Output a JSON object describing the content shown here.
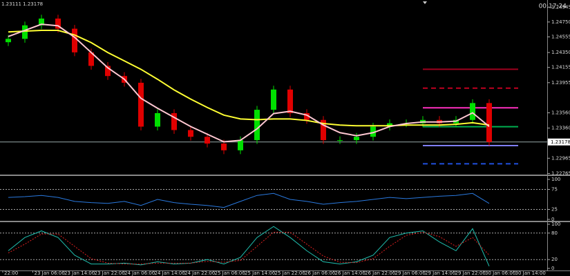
{
  "chart_data": [
    {
      "type": "candlestick",
      "info": "1.23111 1.23178",
      "clock": "00:17:24",
      "open": [
        1.24485,
        1.24529,
        1.24706,
        1.24795,
        1.24662,
        1.24352,
        1.24175,
        1.24042,
        1.23954,
        1.23379,
        1.23556,
        1.23334,
        1.23246,
        1.23157,
        1.23069,
        1.23202,
        1.236,
        1.23865,
        1.23556,
        1.23467,
        1.23202,
        1.23202,
        1.23246,
        1.23379,
        1.23423,
        1.23423,
        1.23467,
        1.23423,
        1.23467,
        1.23688
      ],
      "high": [
        1.24579,
        1.24756,
        1.24845,
        1.24845,
        1.24712,
        1.24402,
        1.24225,
        1.24092,
        1.24004,
        1.23606,
        1.23606,
        1.23384,
        1.23296,
        1.23207,
        1.23252,
        1.2365,
        1.23915,
        1.23915,
        1.23606,
        1.23517,
        1.23252,
        1.23296,
        1.23429,
        1.23473,
        1.23473,
        1.23517,
        1.23517,
        1.23517,
        1.23738,
        1.23738
      ],
      "low": [
        1.24435,
        1.24479,
        1.24656,
        1.24612,
        1.24302,
        1.24125,
        1.23992,
        1.23904,
        1.23329,
        1.23329,
        1.23284,
        1.23196,
        1.23107,
        1.23019,
        1.23019,
        1.23152,
        1.2355,
        1.23506,
        1.23417,
        1.23152,
        1.23152,
        1.23152,
        1.23196,
        1.23329,
        1.23373,
        1.23373,
        1.23373,
        1.23373,
        1.23417,
        1.23128
      ],
      "close": [
        1.24529,
        1.24706,
        1.24795,
        1.24662,
        1.24352,
        1.24175,
        1.24042,
        1.23954,
        1.23379,
        1.23556,
        1.23334,
        1.23246,
        1.23157,
        1.23069,
        1.23202,
        1.236,
        1.23865,
        1.23556,
        1.23467,
        1.23202,
        1.23202,
        1.23246,
        1.23379,
        1.23423,
        1.23423,
        1.23467,
        1.23423,
        1.23467,
        1.23688,
        1.23178
      ],
      "up_color": "#00e000",
      "down_color": "#e00000",
      "series": [
        {
          "color": "#ffff33",
          "values": [
            1.2462,
            1.2463,
            1.2464,
            1.2464,
            1.2458,
            1.2448,
            1.2435,
            1.2424,
            1.2413,
            1.24,
            1.2386,
            1.2374,
            1.2363,
            1.2353,
            1.2348,
            1.2347,
            1.2348,
            1.2348,
            1.2346,
            1.2342,
            1.234,
            1.2339,
            1.2339,
            1.2339,
            1.234,
            1.234,
            1.234,
            1.2341,
            1.2343,
            1.234
          ]
        },
        {
          "color": "#ffc8d2",
          "values": [
            1.2456,
            1.2464,
            1.2472,
            1.247,
            1.2455,
            1.2435,
            1.2415,
            1.24,
            1.2375,
            1.2362,
            1.235,
            1.2338,
            1.2328,
            1.2318,
            1.232,
            1.2335,
            1.2355,
            1.2358,
            1.2353,
            1.234,
            1.233,
            1.2326,
            1.233,
            1.2338,
            1.2342,
            1.2344,
            1.2344,
            1.2345,
            1.2356,
            1.2338
          ]
        }
      ],
      "levels": [
        {
          "value": 1.24131,
          "color": "#a0001e",
          "dashed": false
        },
        {
          "value": 1.23883,
          "color": "#c00020",
          "dashed": true
        },
        {
          "value": 1.23626,
          "color": "#ff30c0",
          "dashed": false
        },
        {
          "value": 1.23378,
          "color": "#00b050",
          "dashed": false
        },
        {
          "value": 1.23131,
          "color": "#8080ff",
          "dashed": false
        },
        {
          "value": 1.22892,
          "color": "#2050e0",
          "dashed": true
        }
      ],
      "current_price": 1.23178,
      "ylim": [
        1.2276,
        1.2502
      ],
      "yticks": [
        {
          "value": 1.24945,
          "label": "1.24945"
        },
        {
          "value": 1.2475,
          "label": "1.24750"
        },
        {
          "value": 1.24555,
          "label": "1.24555"
        },
        {
          "value": 1.2435,
          "label": "1.24350"
        },
        {
          "value": 1.24155,
          "label": "1.24155"
        },
        {
          "value": 1.23955,
          "label": "1.23955"
        },
        {
          "value": 1.2356,
          "label": "1.23560"
        },
        {
          "value": 1.2336,
          "label": "1.23360"
        },
        {
          "value": 1.22965,
          "label": "1.22965"
        },
        {
          "value": 1.22765,
          "label": "1.22765"
        }
      ],
      "x_labels": [
        "22:00",
        "23 Jan 06:00",
        "23 Jan 14:00",
        "23 Jan 22:00",
        "24 Jan 06:00",
        "24 Jan 14:00",
        "24 Jan 22:00",
        "25 Jan 06:00",
        "25 Jan 14:00",
        "25 Jan 22:00",
        "26 Jan 06:00",
        "26 Jan 14:00",
        "26 Jan 22:00",
        "29 Jan 06:00",
        "29 Jan 14:00",
        "29 Jan 22:00",
        "30 Jan 06:00",
        "30 Jan 14:00"
      ]
    },
    {
      "type": "line",
      "series": [
        {
          "color": "#2a7ae0",
          "values": [
            55,
            57,
            60,
            55,
            45,
            42,
            40,
            45,
            35,
            50,
            42,
            38,
            35,
            30,
            45,
            60,
            65,
            50,
            45,
            38,
            42,
            45,
            50,
            55,
            52,
            55,
            58,
            60,
            65,
            40
          ]
        }
      ],
      "ylim": [
        0,
        100
      ],
      "yticks": [
        0,
        25,
        75,
        100
      ]
    },
    {
      "type": "line",
      "series": [
        {
          "color": "#20c0b0",
          "values": [
            40,
            70,
            85,
            70,
            30,
            10,
            10,
            12,
            8,
            15,
            10,
            12,
            20,
            10,
            25,
            70,
            95,
            70,
            40,
            15,
            10,
            15,
            30,
            70,
            80,
            85,
            60,
            40,
            90,
            5
          ]
        },
        {
          "color": "#e02020",
          "dashed": true,
          "values": [
            35,
            55,
            78,
            78,
            50,
            22,
            12,
            10,
            10,
            12,
            12,
            12,
            16,
            14,
            18,
            50,
            82,
            82,
            55,
            28,
            14,
            13,
            22,
            50,
            75,
            82,
            72,
            50,
            70,
            30
          ]
        }
      ],
      "ylim": [
        0,
        100
      ],
      "yticks": [
        0,
        20,
        80,
        100
      ]
    }
  ]
}
